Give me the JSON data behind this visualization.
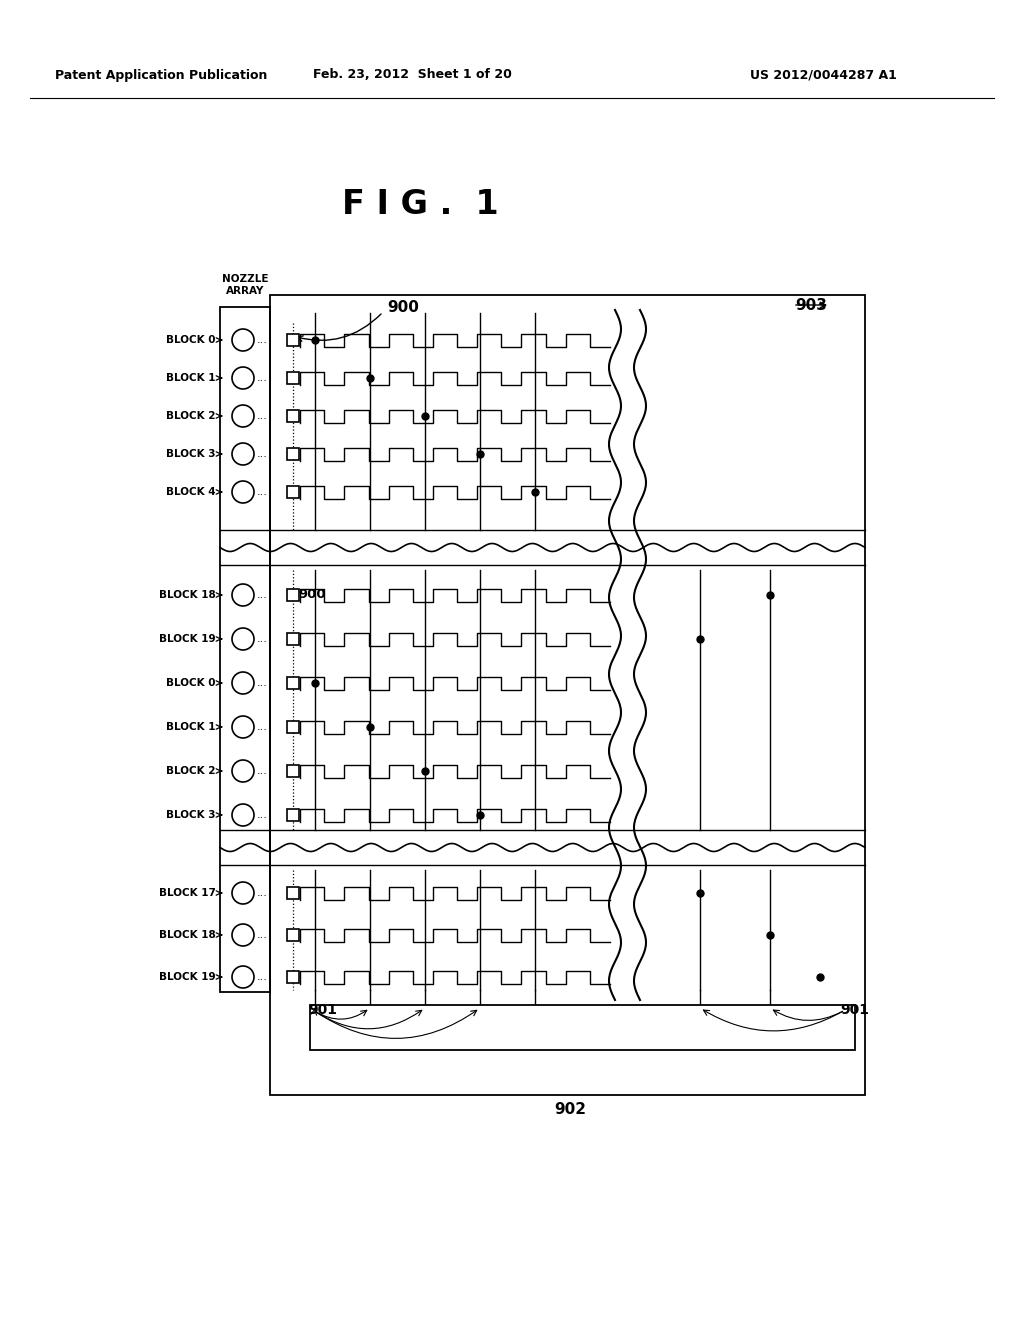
{
  "header_left": "Patent Application Publication",
  "header_mid": "Feb. 23, 2012  Sheet 1 of 20",
  "header_right": "US 2012/0044287 A1",
  "title": "F I G .  1",
  "nozzle_label": "NOZZLE\nARRAY",
  "blocks_top": [
    "BLOCK 0",
    "BLOCK 1",
    "BLOCK 2",
    "BLOCK 3",
    "BLOCK 4"
  ],
  "blocks_mid": [
    "BLOCK 18",
    "BLOCK 19",
    "BLOCK 0",
    "BLOCK 1",
    "BLOCK 2",
    "BLOCK 3"
  ],
  "blocks_bot": [
    "BLOCK 17",
    "BLOCK 18",
    "BLOCK 19"
  ],
  "bg": "#ffffff",
  "lc": "#000000",
  "label_900": "900",
  "label_900_mid": "900",
  "label_903": "903",
  "label_901": "901",
  "label_902": "902"
}
